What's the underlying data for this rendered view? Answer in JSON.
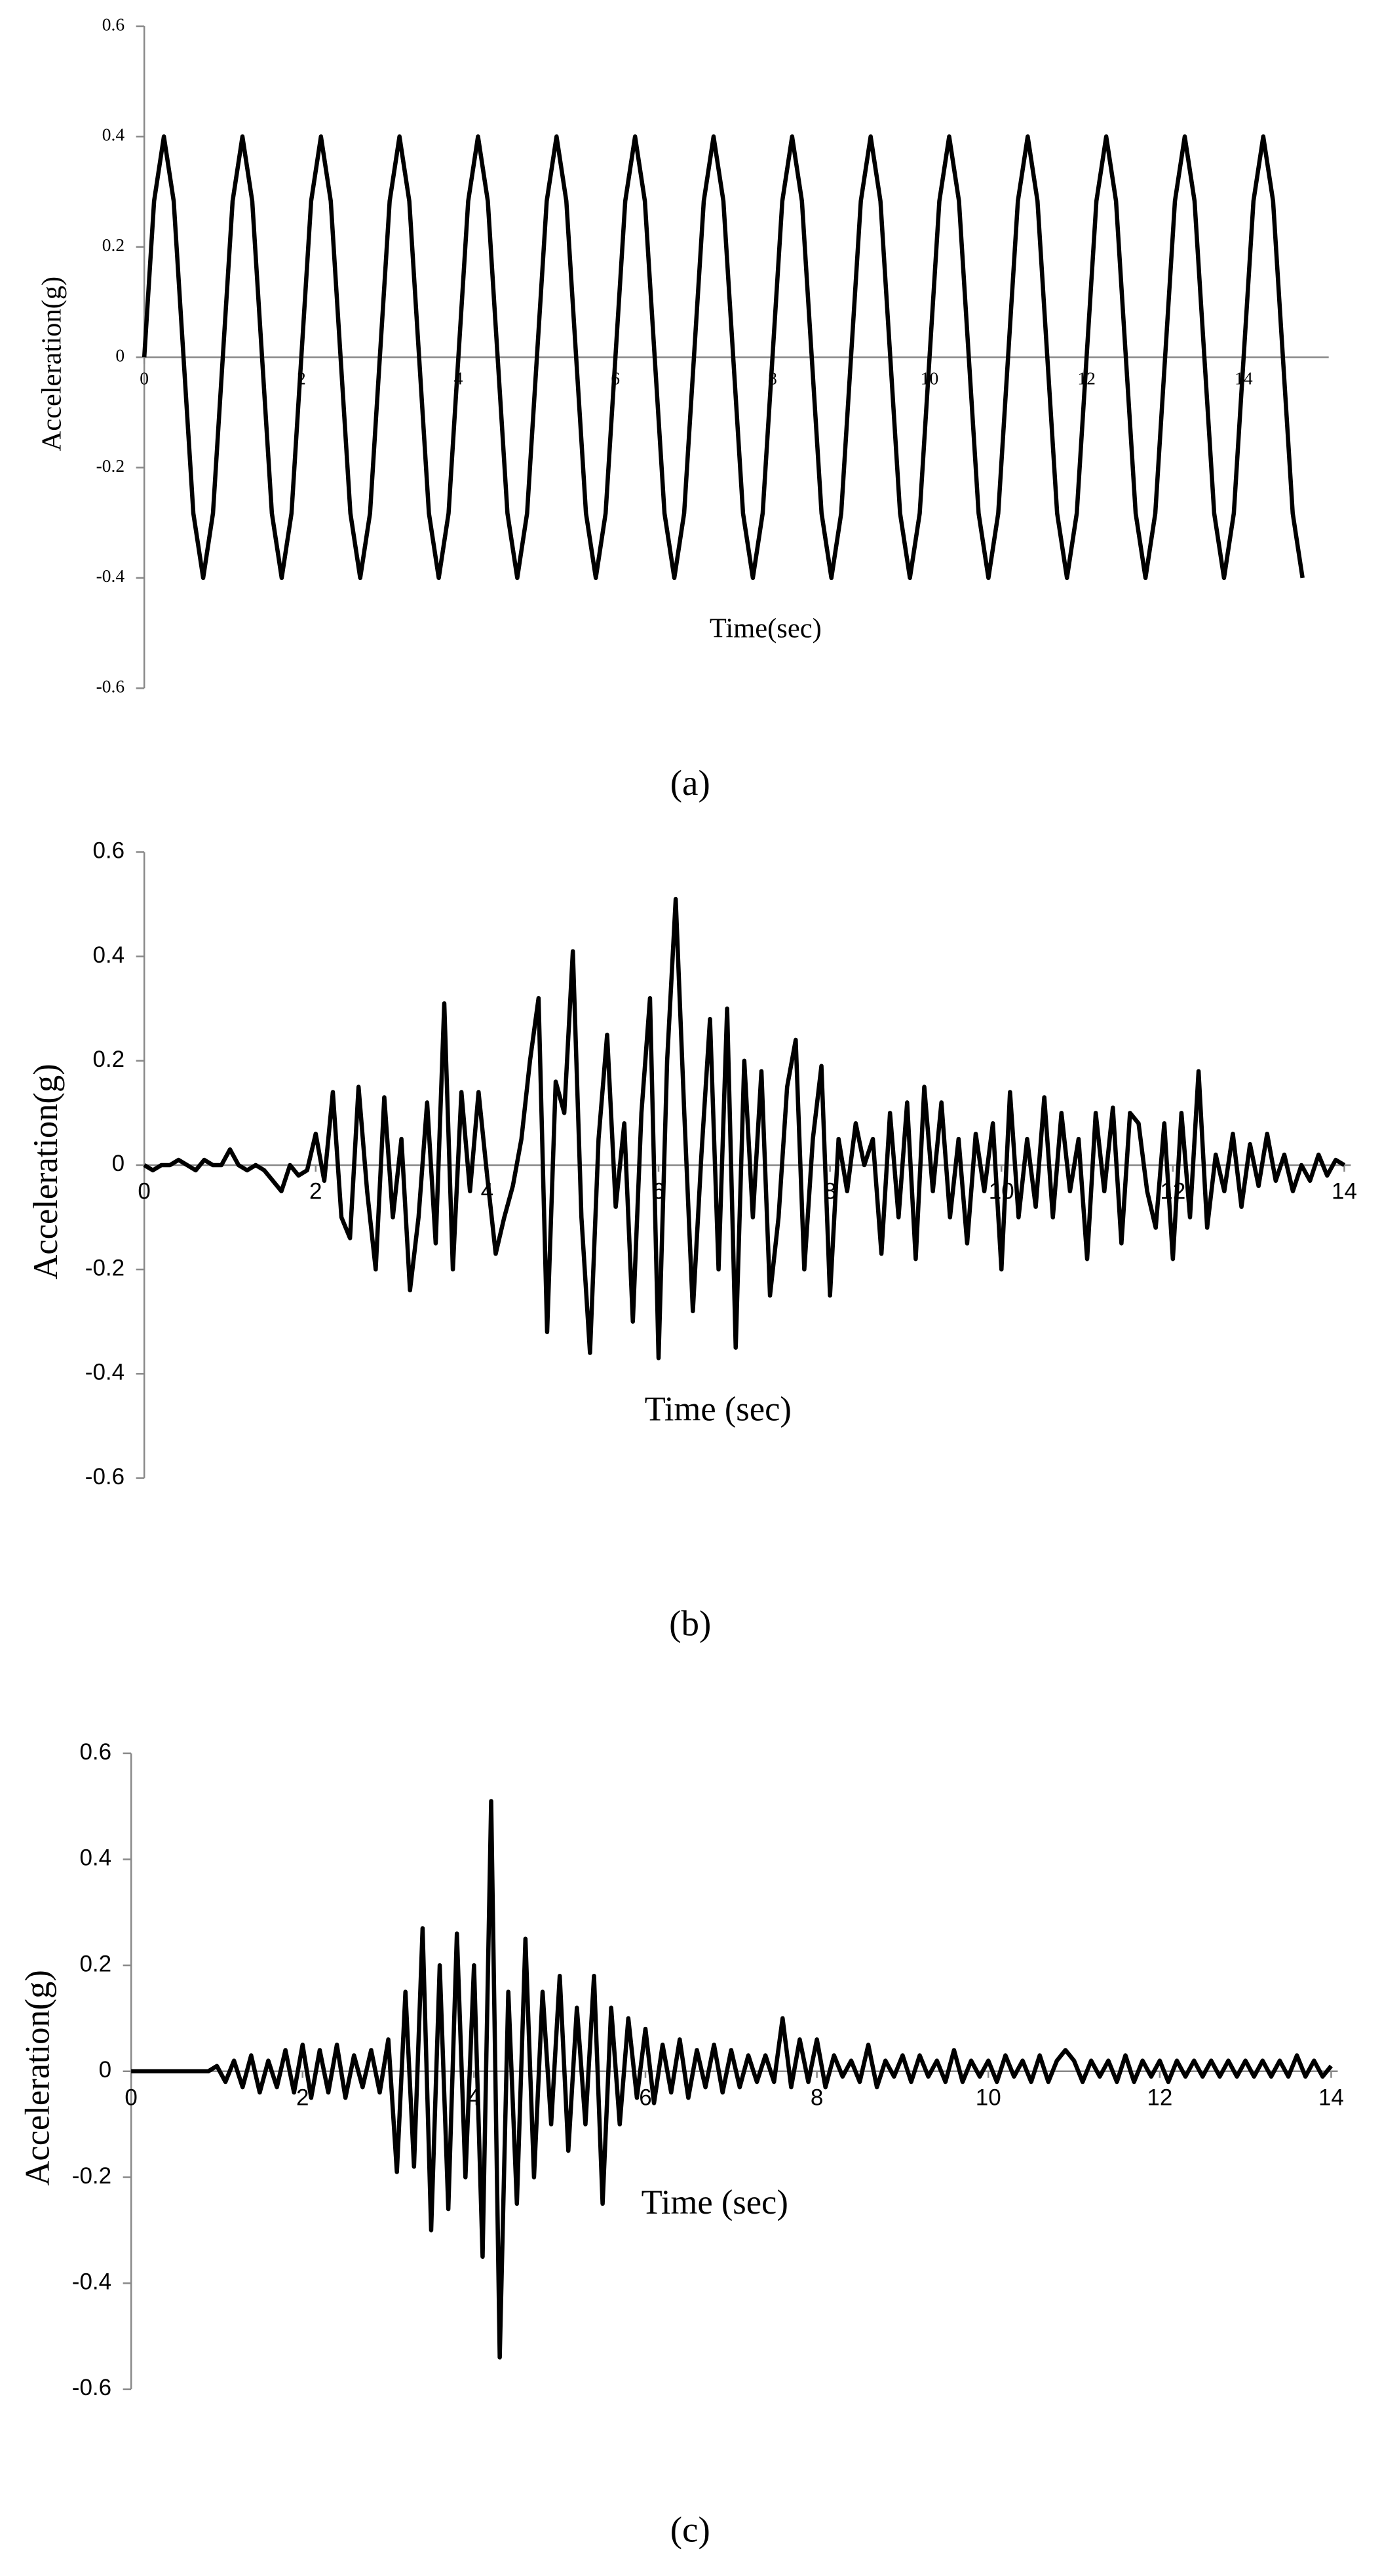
{
  "chart_data": [
    {
      "type": "line",
      "caption": "(a)",
      "x_label": "Time(sec)",
      "y_label": "Acceleration(g)",
      "color": "#000000",
      "xlim": [
        0,
        15
      ],
      "ylim": [
        -0.6,
        0.6
      ],
      "xticks": [
        0,
        2,
        4,
        6,
        8,
        10,
        12,
        14
      ],
      "yticks": [
        -0.6,
        -0.4,
        -0.2,
        0,
        0.2,
        0.4,
        0.6
      ],
      "x": [
        0,
        0.125,
        0.25,
        0.375,
        0.5,
        0.625,
        0.75,
        0.875,
        1,
        1.125,
        1.25,
        1.375,
        1.5,
        1.625,
        1.75,
        1.875,
        2,
        2.125,
        2.25,
        2.375,
        2.5,
        2.625,
        2.75,
        2.875,
        3,
        3.125,
        3.25,
        3.375,
        3.5,
        3.625,
        3.75,
        3.875,
        4,
        4.125,
        4.25,
        4.375,
        4.5,
        4.625,
        4.75,
        4.875,
        5,
        5.125,
        5.25,
        5.375,
        5.5,
        5.625,
        5.75,
        5.875,
        6,
        6.125,
        6.25,
        6.375,
        6.5,
        6.625,
        6.75,
        6.875,
        7,
        7.125,
        7.25,
        7.375,
        7.5,
        7.625,
        7.75,
        7.875,
        8,
        8.125,
        8.25,
        8.375,
        8.5,
        8.625,
        8.75,
        8.875,
        9,
        9.125,
        9.25,
        9.375,
        9.5,
        9.625,
        9.75,
        9.875,
        10,
        10.125,
        10.25,
        10.375,
        10.5,
        10.625,
        10.75,
        10.875,
        11,
        11.125,
        11.25,
        11.375,
        11.5,
        11.625,
        11.75,
        11.875,
        12,
        12.125,
        12.25,
        12.375,
        12.5,
        12.625,
        12.75,
        12.875,
        13,
        13.125,
        13.25,
        13.375,
        13.5,
        13.625,
        13.75,
        13.875,
        14,
        14.125,
        14.25,
        14.375,
        14.5,
        14.625,
        14.75
      ],
      "values": [
        0,
        0.283,
        0.4,
        0.283,
        0,
        -0.283,
        -0.4,
        -0.283,
        0,
        0.283,
        0.4,
        0.283,
        0,
        -0.283,
        -0.4,
        -0.283,
        0,
        0.283,
        0.4,
        0.283,
        0,
        -0.283,
        -0.4,
        -0.283,
        0,
        0.283,
        0.4,
        0.283,
        0,
        -0.283,
        -0.4,
        -0.283,
        0,
        0.283,
        0.4,
        0.283,
        0,
        -0.283,
        -0.4,
        -0.283,
        0,
        0.283,
        0.4,
        0.283,
        0,
        -0.283,
        -0.4,
        -0.283,
        0,
        0.283,
        0.4,
        0.283,
        0,
        -0.283,
        -0.4,
        -0.283,
        0,
        0.283,
        0.4,
        0.283,
        0,
        -0.283,
        -0.4,
        -0.283,
        0,
        0.283,
        0.4,
        0.283,
        0,
        -0.283,
        -0.4,
        -0.283,
        0,
        0.283,
        0.4,
        0.283,
        0,
        -0.283,
        -0.4,
        -0.283,
        0,
        0.283,
        0.4,
        0.283,
        0,
        -0.283,
        -0.4,
        -0.283,
        0,
        0.283,
        0.4,
        0.283,
        0,
        -0.283,
        -0.4,
        -0.283,
        0,
        0.283,
        0.4,
        0.283,
        0,
        -0.283,
        -0.4,
        -0.283,
        0,
        0.283,
        0.4,
        0.283,
        0,
        -0.283,
        -0.4,
        -0.283,
        0,
        0.283,
        0.4,
        0.283,
        0,
        -0.283,
        -0.4
      ]
    },
    {
      "type": "line",
      "caption": "(b)",
      "x_label": "Time (sec)",
      "y_label": "Acceleration(g)",
      "color": "#000000",
      "xlim": [
        0,
        14
      ],
      "ylim": [
        -0.6,
        0.6
      ],
      "xticks": [
        0,
        2,
        4,
        6,
        8,
        10,
        12,
        14
      ],
      "yticks": [
        -0.6,
        -0.4,
        -0.2,
        0,
        0.2,
        0.4,
        0.6
      ],
      "x": [
        0,
        0.1,
        0.2,
        0.3,
        0.4,
        0.5,
        0.6,
        0.7,
        0.8,
        0.9,
        1,
        1.1,
        1.2,
        1.3,
        1.4,
        1.5,
        1.6,
        1.7,
        1.8,
        1.9,
        2,
        2.1,
        2.2,
        2.3,
        2.4,
        2.5,
        2.6,
        2.7,
        2.8,
        2.9,
        3,
        3.1,
        3.2,
        3.3,
        3.4,
        3.5,
        3.6,
        3.7,
        3.8,
        3.9,
        4,
        4.1,
        4.2,
        4.3,
        4.4,
        4.5,
        4.6,
        4.7,
        4.8,
        4.9,
        5,
        5.1,
        5.2,
        5.3,
        5.4,
        5.5,
        5.6,
        5.7,
        5.8,
        5.9,
        6,
        6.1,
        6.2,
        6.3,
        6.4,
        6.5,
        6.6,
        6.7,
        6.8,
        6.9,
        7,
        7.1,
        7.2,
        7.3,
        7.4,
        7.5,
        7.6,
        7.7,
        7.8,
        7.9,
        8,
        8.1,
        8.2,
        8.3,
        8.4,
        8.5,
        8.6,
        8.7,
        8.8,
        8.9,
        9,
        9.1,
        9.2,
        9.3,
        9.4,
        9.5,
        9.6,
        9.7,
        9.8,
        9.9,
        10,
        10.1,
        10.2,
        10.3,
        10.4,
        10.5,
        10.6,
        10.7,
        10.8,
        10.9,
        11,
        11.1,
        11.2,
        11.3,
        11.4,
        11.5,
        11.6,
        11.7,
        11.8,
        11.9,
        12,
        12.1,
        12.2,
        12.3,
        12.4,
        12.5,
        12.6,
        12.7,
        12.8,
        12.9,
        13,
        13.1,
        13.2,
        13.3,
        13.4,
        13.5,
        13.6,
        13.7,
        13.8,
        13.9,
        14
      ],
      "values": [
        0,
        -0.01,
        0,
        0,
        0.01,
        0,
        -0.01,
        0.01,
        0,
        0,
        0.03,
        0,
        -0.01,
        0,
        -0.01,
        -0.03,
        -0.05,
        0,
        -0.02,
        -0.01,
        0.06,
        -0.03,
        0.14,
        -0.1,
        -0.14,
        0.15,
        -0.05,
        -0.2,
        0.13,
        -0.1,
        0.05,
        -0.24,
        -0.1,
        0.12,
        -0.15,
        0.31,
        -0.2,
        0.14,
        -0.05,
        0.14,
        -0.02,
        -0.17,
        -0.1,
        -0.04,
        0.05,
        0.2,
        0.32,
        -0.32,
        0.16,
        0.1,
        0.41,
        -0.1,
        -0.36,
        0.05,
        0.25,
        -0.08,
        0.08,
        -0.3,
        0.1,
        0.32,
        -0.37,
        0.2,
        0.51,
        0.1,
        -0.28,
        0.02,
        0.28,
        -0.2,
        0.3,
        -0.35,
        0.2,
        -0.1,
        0.18,
        -0.25,
        -0.1,
        0.15,
        0.24,
        -0.2,
        0.05,
        0.19,
        -0.25,
        0.05,
        -0.05,
        0.08,
        0,
        0.05,
        -0.17,
        0.1,
        -0.1,
        0.12,
        -0.18,
        0.15,
        -0.05,
        0.12,
        -0.1,
        0.05,
        -0.15,
        0.06,
        -0.05,
        0.08,
        -0.2,
        0.14,
        -0.1,
        0.05,
        -0.08,
        0.13,
        -0.1,
        0.1,
        -0.05,
        0.05,
        -0.18,
        0.1,
        -0.05,
        0.11,
        -0.15,
        0.1,
        0.08,
        -0.05,
        -0.12,
        0.08,
        -0.18,
        0.1,
        -0.1,
        0.18,
        -0.12,
        0.02,
        -0.05,
        0.06,
        -0.08,
        0.04,
        -0.04,
        0.06,
        -0.03,
        0.02,
        -0.05,
        0,
        -0.03,
        0.02,
        -0.02,
        0.01,
        0
      ]
    },
    {
      "type": "line",
      "caption": "(c)",
      "x_label": "Time (sec)",
      "y_label": "Acceleration(g)",
      "color": "#000000",
      "xlim": [
        0,
        14
      ],
      "ylim": [
        -0.6,
        0.6
      ],
      "xticks": [
        0,
        2,
        4,
        6,
        8,
        10,
        12,
        14
      ],
      "yticks": [
        -0.6,
        -0.4,
        -0.2,
        0,
        0.2,
        0.4,
        0.6
      ],
      "x": [
        0,
        0.1,
        0.2,
        0.3,
        0.4,
        0.5,
        0.6,
        0.7,
        0.8,
        0.9,
        1,
        1.1,
        1.2,
        1.3,
        1.4,
        1.5,
        1.6,
        1.7,
        1.8,
        1.9,
        2,
        2.1,
        2.2,
        2.3,
        2.4,
        2.5,
        2.6,
        2.7,
        2.8,
        2.9,
        3,
        3.1,
        3.2,
        3.3,
        3.4,
        3.5,
        3.6,
        3.7,
        3.8,
        3.9,
        4,
        4.1,
        4.2,
        4.3,
        4.4,
        4.5,
        4.6,
        4.7,
        4.8,
        4.9,
        5,
        5.1,
        5.2,
        5.3,
        5.4,
        5.5,
        5.6,
        5.7,
        5.8,
        5.9,
        6,
        6.1,
        6.2,
        6.3,
        6.4,
        6.5,
        6.6,
        6.7,
        6.8,
        6.9,
        7,
        7.1,
        7.2,
        7.3,
        7.4,
        7.5,
        7.6,
        7.7,
        7.8,
        7.9,
        8,
        8.1,
        8.2,
        8.3,
        8.4,
        8.5,
        8.6,
        8.7,
        8.8,
        8.9,
        9,
        9.1,
        9.2,
        9.3,
        9.4,
        9.5,
        9.6,
        9.7,
        9.8,
        9.9,
        10,
        10.1,
        10.2,
        10.3,
        10.4,
        10.5,
        10.6,
        10.7,
        10.8,
        10.9,
        11,
        11.1,
        11.2,
        11.3,
        11.4,
        11.5,
        11.6,
        11.7,
        11.8,
        11.9,
        12,
        12.1,
        12.2,
        12.3,
        12.4,
        12.5,
        12.6,
        12.7,
        12.8,
        12.9,
        13,
        13.1,
        13.2,
        13.3,
        13.4,
        13.5,
        13.6,
        13.7,
        13.8,
        13.9,
        14
      ],
      "values": [
        0,
        0,
        0,
        0,
        0,
        0,
        0,
        0,
        0,
        0,
        0.01,
        -0.02,
        0.02,
        -0.03,
        0.03,
        -0.04,
        0.02,
        -0.03,
        0.04,
        -0.04,
        0.05,
        -0.05,
        0.04,
        -0.04,
        0.05,
        -0.05,
        0.03,
        -0.03,
        0.04,
        -0.04,
        0.06,
        -0.19,
        0.15,
        -0.18,
        0.27,
        -0.3,
        0.2,
        -0.26,
        0.26,
        -0.2,
        0.2,
        -0.35,
        0.51,
        -0.54,
        0.15,
        -0.25,
        0.25,
        -0.2,
        0.15,
        -0.1,
        0.18,
        -0.15,
        0.12,
        -0.1,
        0.18,
        -0.25,
        0.12,
        -0.1,
        0.1,
        -0.05,
        0.08,
        -0.06,
        0.05,
        -0.04,
        0.06,
        -0.05,
        0.04,
        -0.03,
        0.05,
        -0.04,
        0.04,
        -0.03,
        0.03,
        -0.02,
        0.03,
        -0.02,
        0.1,
        -0.03,
        0.06,
        -0.02,
        0.06,
        -0.03,
        0.03,
        -0.01,
        0.02,
        -0.02,
        0.05,
        -0.03,
        0.02,
        -0.01,
        0.03,
        -0.02,
        0.03,
        -0.01,
        0.02,
        -0.02,
        0.04,
        -0.02,
        0.02,
        -0.01,
        0.02,
        -0.02,
        0.03,
        -0.01,
        0.02,
        -0.02,
        0.03,
        -0.02,
        0.02,
        0.04,
        0.02,
        -0.02,
        0.02,
        -0.01,
        0.02,
        -0.02,
        0.03,
        -0.02,
        0.02,
        -0.01,
        0.02,
        -0.02,
        0.02,
        -0.01,
        0.02,
        -0.01,
        0.02,
        -0.01,
        0.02,
        -0.01,
        0.02,
        -0.01,
        0.02,
        -0.01,
        0.02,
        -0.01,
        0.03,
        -0.01,
        0.02,
        -0.01,
        0.01
      ]
    }
  ]
}
